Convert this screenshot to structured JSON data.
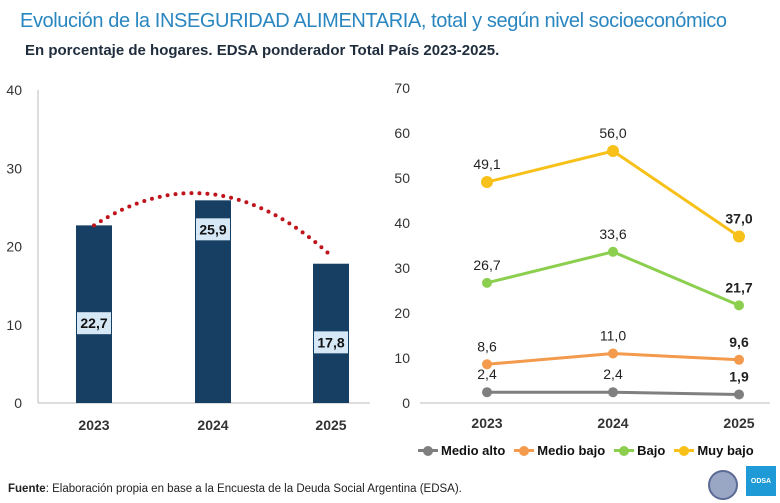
{
  "title": "Evolución de la INSEGURIDAD ALIMENTARIA, total y según nivel socioeconómico",
  "subtitle": "En porcentaje de hogares. EDSA ponderador Total País 2023-2025.",
  "source_label": "Fuente",
  "source_text": ": Elaboración propia en base a la Encuesta de la Deuda Social Argentina (EDSA).",
  "logo_text": "ODSA",
  "chart_data": [
    {
      "type": "bar",
      "categories": [
        "2023",
        "2024",
        "2025"
      ],
      "values": [
        22.7,
        25.9,
        17.8
      ],
      "labels": [
        "22,7",
        "25,9",
        "17,8"
      ],
      "ylim": [
        0,
        40
      ],
      "yticks": [
        0,
        10,
        20,
        30,
        40
      ],
      "bar_color": "#163f63",
      "trend_color": "#c0141c",
      "trend": "dotted-curve",
      "grid": false
    },
    {
      "type": "line",
      "categories": [
        "2023",
        "2024",
        "2025"
      ],
      "ylim": [
        0,
        70
      ],
      "yticks": [
        0,
        10,
        20,
        30,
        40,
        50,
        60,
        70
      ],
      "grid": false,
      "legend": "bottom",
      "series": [
        {
          "name": "Medio alto",
          "color": "#7f7f7f",
          "values": [
            2.4,
            2.4,
            1.9
          ],
          "labels": [
            "2,4",
            "2,4",
            "1,9"
          ]
        },
        {
          "name": "Medio bajo",
          "color": "#f39a4c",
          "values": [
            8.6,
            11.0,
            9.6
          ],
          "labels": [
            "8,6",
            "11,0",
            "9,6"
          ]
        },
        {
          "name": "Bajo",
          "color": "#8ccf4f",
          "values": [
            26.7,
            33.6,
            21.7
          ],
          "labels": [
            "26,7",
            "33,6",
            "21,7"
          ]
        },
        {
          "name": "Muy bajo",
          "color": "#f7c11a",
          "values": [
            49.1,
            56.0,
            37.0
          ],
          "labels": [
            "49,1",
            "56,0",
            "37,0"
          ]
        }
      ]
    }
  ]
}
